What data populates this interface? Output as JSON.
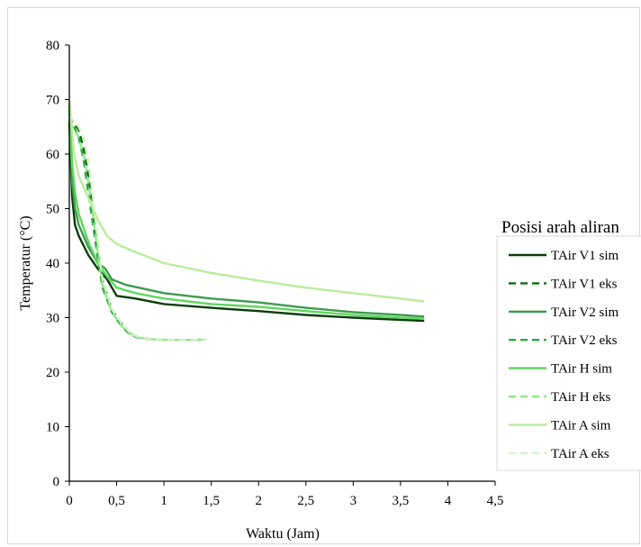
{
  "chart_data": {
    "type": "line",
    "xlabel": "Waktu (Jam)",
    "ylabel": "Temperatur (°C)",
    "xlim": [
      0,
      4.5
    ],
    "ylim": [
      0,
      80
    ],
    "x_ticks": [
      0,
      0.5,
      1,
      1.5,
      2,
      2.5,
      3,
      3.5,
      4,
      4.5
    ],
    "x_tick_labels": [
      "0",
      "0,5",
      "1",
      "1,5",
      "2",
      "2,5",
      "3",
      "3,5",
      "4",
      "4,5"
    ],
    "y_ticks": [
      0,
      10,
      20,
      30,
      40,
      50,
      60,
      70,
      80
    ],
    "y_tick_labels": [
      "0",
      "10",
      "20",
      "30",
      "40",
      "50",
      "60",
      "70",
      "80"
    ],
    "grid": false,
    "legend": {
      "title": "Posisi arah aliran",
      "placement": "right"
    },
    "series": [
      {
        "name": "TAir V1 sim",
        "color": "#0b3d0b",
        "dash": "solid",
        "points": [
          [
            0.0,
            66.0
          ],
          [
            0.03,
            52.0
          ],
          [
            0.06,
            47.0
          ],
          [
            0.1,
            45.0
          ],
          [
            0.2,
            41.5
          ],
          [
            0.3,
            39.0
          ],
          [
            0.4,
            37.0
          ],
          [
            0.5,
            34.0
          ],
          [
            0.7,
            33.5
          ],
          [
            1.0,
            32.5
          ],
          [
            1.5,
            31.8
          ],
          [
            2.0,
            31.2
          ],
          [
            2.5,
            30.5
          ],
          [
            3.0,
            30.0
          ],
          [
            3.5,
            29.6
          ],
          [
            3.75,
            29.4
          ]
        ]
      },
      {
        "name": "TAir V1 eks",
        "color": "#0f6b0f",
        "dash": "dashed",
        "points": [
          [
            0.0,
            67.0
          ],
          [
            0.05,
            65.5
          ],
          [
            0.1,
            64.5
          ],
          [
            0.15,
            61.0
          ],
          [
            0.2,
            56.0
          ],
          [
            0.25,
            50.0
          ],
          [
            0.3,
            43.0
          ],
          [
            0.35,
            37.0
          ],
          [
            0.45,
            31.5
          ],
          [
            0.55,
            29.0
          ],
          [
            0.65,
            27.0
          ],
          [
            0.75,
            26.3
          ],
          [
            0.9,
            26.0
          ],
          [
            1.1,
            25.9
          ],
          [
            1.3,
            25.9
          ],
          [
            1.45,
            26.0
          ]
        ]
      },
      {
        "name": "TAir V2 sim",
        "color": "#3e9b4f",
        "dash": "solid",
        "points": [
          [
            0.0,
            68.0
          ],
          [
            0.03,
            55.0
          ],
          [
            0.06,
            50.0
          ],
          [
            0.1,
            47.0
          ],
          [
            0.2,
            43.0
          ],
          [
            0.3,
            40.0
          ],
          [
            0.38,
            39.0
          ],
          [
            0.45,
            37.0
          ],
          [
            0.6,
            36.0
          ],
          [
            1.0,
            34.5
          ],
          [
            1.5,
            33.5
          ],
          [
            2.0,
            32.8
          ],
          [
            2.5,
            31.8
          ],
          [
            3.0,
            31.0
          ],
          [
            3.5,
            30.5
          ],
          [
            3.75,
            30.2
          ]
        ]
      },
      {
        "name": "TAir V2 eks",
        "color": "#2fa84a",
        "dash": "dashed",
        "points": [
          [
            0.0,
            67.0
          ],
          [
            0.05,
            65.0
          ],
          [
            0.1,
            63.0
          ],
          [
            0.15,
            59.0
          ],
          [
            0.2,
            53.0
          ],
          [
            0.25,
            47.0
          ],
          [
            0.3,
            41.0
          ],
          [
            0.35,
            35.5
          ],
          [
            0.45,
            31.0
          ],
          [
            0.55,
            28.5
          ],
          [
            0.65,
            26.8
          ],
          [
            0.75,
            26.2
          ],
          [
            0.9,
            26.0
          ],
          [
            1.1,
            25.9
          ],
          [
            1.3,
            25.9
          ],
          [
            1.45,
            26.0
          ]
        ]
      },
      {
        "name": "TAir H sim",
        "color": "#5ed65e",
        "dash": "solid",
        "points": [
          [
            0.0,
            69.0
          ],
          [
            0.03,
            58.0
          ],
          [
            0.06,
            53.0
          ],
          [
            0.1,
            49.0
          ],
          [
            0.2,
            44.0
          ],
          [
            0.3,
            40.0
          ],
          [
            0.4,
            37.5
          ],
          [
            0.5,
            35.5
          ],
          [
            0.7,
            34.5
          ],
          [
            1.0,
            33.5
          ],
          [
            1.5,
            32.5
          ],
          [
            2.0,
            32.0
          ],
          [
            2.5,
            31.2
          ],
          [
            3.0,
            30.5
          ],
          [
            3.5,
            30.0
          ],
          [
            3.75,
            29.8
          ]
        ]
      },
      {
        "name": "TAir H eks",
        "color": "#8ee88a",
        "dash": "dashed",
        "points": [
          [
            0.0,
            66.0
          ],
          [
            0.05,
            64.5
          ],
          [
            0.1,
            63.0
          ],
          [
            0.15,
            60.0
          ],
          [
            0.2,
            55.0
          ],
          [
            0.25,
            49.0
          ],
          [
            0.3,
            42.0
          ],
          [
            0.35,
            36.0
          ],
          [
            0.45,
            31.0
          ],
          [
            0.55,
            28.5
          ],
          [
            0.65,
            27.0
          ],
          [
            0.75,
            26.3
          ],
          [
            0.9,
            26.0
          ],
          [
            1.1,
            25.9
          ],
          [
            1.3,
            25.9
          ],
          [
            1.45,
            26.0
          ]
        ]
      },
      {
        "name": "TAir A sim",
        "color": "#b9ec9c",
        "dash": "solid",
        "points": [
          [
            0.0,
            70.0
          ],
          [
            0.05,
            60.0
          ],
          [
            0.1,
            56.0
          ],
          [
            0.2,
            52.0
          ],
          [
            0.3,
            48.0
          ],
          [
            0.4,
            45.0
          ],
          [
            0.5,
            43.5
          ],
          [
            0.7,
            42.0
          ],
          [
            1.0,
            40.0
          ],
          [
            1.5,
            38.2
          ],
          [
            2.0,
            36.8
          ],
          [
            2.5,
            35.5
          ],
          [
            3.0,
            34.5
          ],
          [
            3.5,
            33.5
          ],
          [
            3.75,
            33.0
          ]
        ]
      },
      {
        "name": "TAir A eks",
        "color": "#d4f2c2",
        "dash": "dashed",
        "points": [
          [
            0.0,
            67.0
          ],
          [
            0.05,
            66.0
          ],
          [
            0.1,
            65.0
          ],
          [
            0.15,
            63.0
          ],
          [
            0.2,
            59.0
          ],
          [
            0.25,
            52.0
          ],
          [
            0.3,
            44.0
          ],
          [
            0.35,
            37.0
          ],
          [
            0.45,
            31.5
          ],
          [
            0.55,
            29.0
          ],
          [
            0.65,
            27.0
          ],
          [
            0.75,
            26.3
          ],
          [
            0.9,
            26.0
          ],
          [
            1.1,
            25.9
          ],
          [
            1.3,
            25.9
          ],
          [
            1.45,
            26.0
          ]
        ]
      }
    ]
  }
}
